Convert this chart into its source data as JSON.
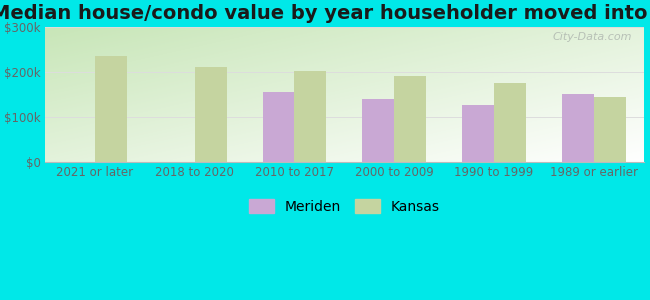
{
  "title": "Median house/condo value by year householder moved into unit",
  "categories": [
    "2021 or later",
    "2018 to 2020",
    "2010 to 2017",
    "2000 to 2009",
    "1990 to 1999",
    "1989 or earlier"
  ],
  "meriden_values": [
    null,
    null,
    155000,
    140000,
    128000,
    152000
  ],
  "kansas_values": [
    237000,
    212000,
    204000,
    192000,
    175000,
    145000
  ],
  "meriden_color": "#c9a8d4",
  "kansas_color": "#c5d4a0",
  "background_color": "#00e8e8",
  "ylim": [
    0,
    300000
  ],
  "yticks": [
    0,
    100000,
    200000,
    300000
  ],
  "ytick_labels": [
    "$0",
    "$100k",
    "$200k",
    "$300k"
  ],
  "legend_labels": [
    "Meriden",
    "Kansas"
  ],
  "bar_width": 0.32,
  "title_fontsize": 14,
  "tick_fontsize": 8.5,
  "legend_fontsize": 10,
  "watermark": "City-Data.com",
  "grid_color": "#dddddd",
  "tick_color": "#666666"
}
